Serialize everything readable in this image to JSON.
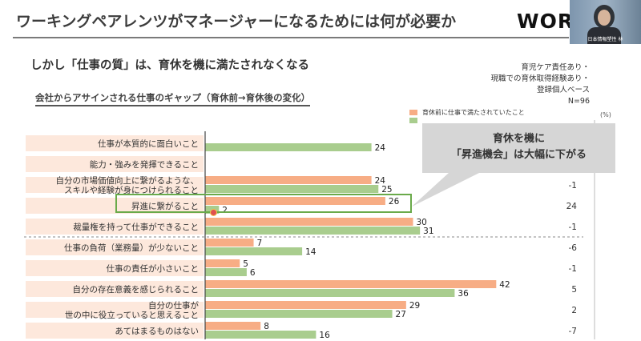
{
  "slide_title": "ワーキングペアレンツがマネージャーになるためには何が必要か",
  "logo": "WOR",
  "camera_caption": "日本情報塑性 林",
  "subtitle": "しかし「仕事の質」は、育休を機に満たされなくなる",
  "note_lines": [
    "育児ケア責任あり・",
    "現職での育休取得経験あり・",
    "登録個人ベース",
    "N=96"
  ],
  "callout": "育休を機に\n「昇進機会」は大幅に下がる",
  "colors": {
    "before": "#f7ad85",
    "after": "#a9cd8e",
    "label_bg": "#fde8dc",
    "highlight": "#6aaa4a"
  },
  "chart_data": {
    "type": "bar",
    "orientation": "horizontal",
    "title": "会社からアサインされる仕事のギャップ（育休前→育休後の変化）",
    "unit": "(%)",
    "categories": [
      "仕事が本質的に面白いこと",
      "能力・強みを発揮できること",
      "自分の市場価値向上に繋がるような、\nスキルや経験が身につけられること",
      "昇進に繋がること",
      "裁量権を持って仕事ができること",
      "仕事の負荷（業務量）が少ないこと",
      "仕事の責任が小さいこと",
      "自分の存在意義を感じられること",
      "自分の仕事が\n世の中に役立っていると思えること",
      "あてはまるものはない"
    ],
    "series": [
      {
        "name": "育休前に仕事で満たされていたこと",
        "values": [
          null,
          null,
          24,
          26,
          30,
          7,
          5,
          42,
          29,
          8
        ],
        "labels": [
          "",
          "",
          "24",
          "26",
          "30",
          "7",
          "5",
          "42",
          "29",
          "8"
        ]
      },
      {
        "name": "",
        "values": [
          24,
          null,
          25,
          2,
          31,
          14,
          6,
          36,
          27,
          16
        ],
        "labels": [
          "24",
          "",
          "25",
          "2",
          "31",
          "14",
          "6",
          "36",
          "27",
          "16"
        ]
      }
    ],
    "difference": [
      "",
      "",
      "-1",
      "24",
      "-1",
      "-6",
      "-1",
      "5",
      "2",
      "-7"
    ],
    "highlighted_category": "昇進に繋がること",
    "xlim": [
      0,
      100
    ]
  }
}
